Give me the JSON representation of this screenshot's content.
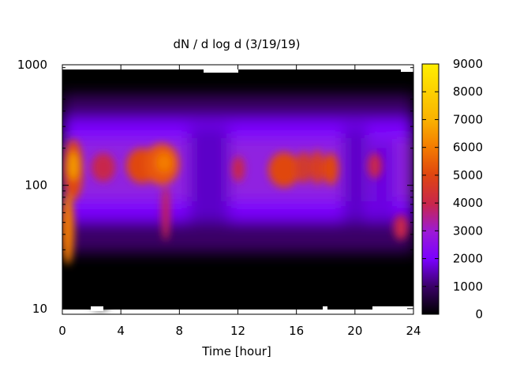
{
  "chart_data": {
    "type": "heatmap",
    "title": "dN / d log d (3/19/19)",
    "xlabel": "Time [hour]",
    "ylabel": "",
    "xlim": [
      0,
      24
    ],
    "ylim": [
      9,
      950
    ],
    "y_scale": "log",
    "x_ticks": [
      0,
      4,
      8,
      12,
      16,
      20,
      24
    ],
    "x_tick_labels": [
      "0",
      "4",
      "8",
      "12",
      "16",
      "20",
      "24"
    ],
    "y_ticks": [
      10,
      100,
      1000
    ],
    "y_tick_labels": [
      "10",
      "100",
      "1000"
    ],
    "colorbar": {
      "range": [
        0,
        9000
      ],
      "ticks": [
        0,
        1000,
        2000,
        3000,
        4000,
        5000,
        6000,
        7000,
        8000,
        9000
      ],
      "tick_labels": [
        "0",
        "1000",
        "2000",
        "3000",
        "4000",
        "5000",
        "6000",
        "7000",
        "8000",
        "9000"
      ],
      "palette": [
        "#000000",
        "#3a0066",
        "#7a00ff",
        "#9c1ad6",
        "#c8264c",
        "#e0470f",
        "#f47d00",
        "#f9b300",
        "#ffee00"
      ]
    },
    "grid": false,
    "legend": "colorbar-right",
    "peak_diameter_nm": 130,
    "features": [
      {
        "time_hour": 0.6,
        "peak_value": 6800
      },
      {
        "time_hour": 2.8,
        "peak_value": 5400
      },
      {
        "time_hour": 5.0,
        "peak_value": 6000
      },
      {
        "time_hour": 6.5,
        "peak_value": 6600
      },
      {
        "time_hour": 12.2,
        "peak_value": 4800
      },
      {
        "time_hour": 15.0,
        "peak_value": 5900
      },
      {
        "time_hour": 16.2,
        "peak_value": 5400
      },
      {
        "time_hour": 17.3,
        "peak_value": 5200
      },
      {
        "time_hour": 18.3,
        "peak_value": 5300
      },
      {
        "time_hour": 21.2,
        "peak_value": 4700
      },
      {
        "time_hour": 23.0,
        "peak_value": 4200
      }
    ]
  }
}
